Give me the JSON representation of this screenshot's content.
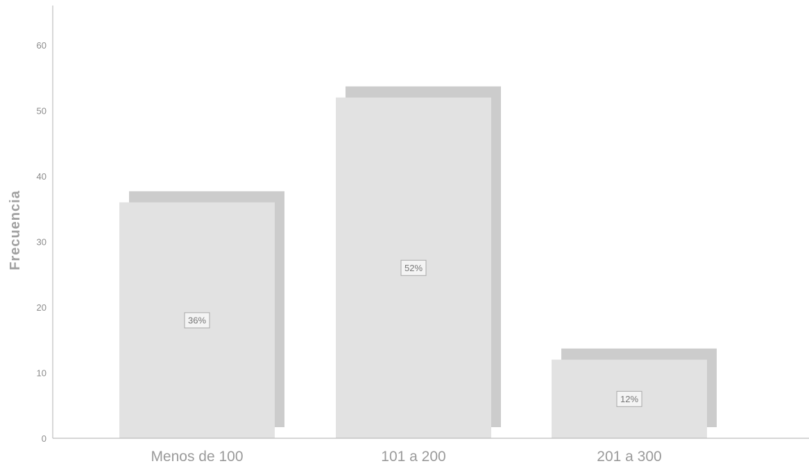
{
  "chart_data": {
    "type": "bar",
    "categories": [
      "Menos de 100",
      "101 a 200",
      "201 a 300"
    ],
    "values": [
      36,
      52,
      12
    ],
    "data_labels": [
      "36%",
      "52%",
      "12%"
    ],
    "title": "",
    "xlabel": "",
    "ylabel": "Frecuencia",
    "ylim": [
      0,
      66
    ],
    "yticks": [
      "0",
      "10",
      "20",
      "30",
      "40",
      "50",
      "60"
    ],
    "grid": false,
    "legend": "none",
    "style": "3d-shadow",
    "colors": {
      "bar_face": "#e2e2e2",
      "bar_shadow": "#cccccc",
      "axis": "#bdbdbd"
    }
  }
}
